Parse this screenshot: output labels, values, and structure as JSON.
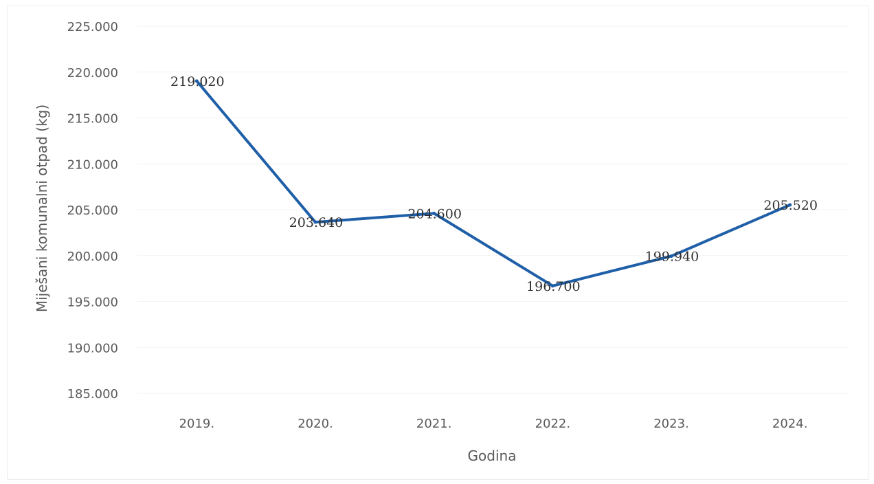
{
  "chart_data": {
    "type": "line",
    "title": "",
    "xlabel": "Godina",
    "ylabel": "Miješani komunalni otpad (kg)",
    "categories": [
      "2019.",
      "2020.",
      "2021.",
      "2022.",
      "2023.",
      "2024."
    ],
    "series": [
      {
        "values": [
          219020,
          203640,
          204600,
          196700,
          199940,
          205520
        ],
        "color": "#1f5fa8"
      }
    ],
    "data_labels": [
      "219.020",
      "203.640",
      "204.600",
      "196.700",
      "199.940",
      "205.520"
    ],
    "ylim": [
      185000,
      225000
    ],
    "yticks": [
      185000,
      190000,
      195000,
      200000,
      205000,
      210000,
      215000,
      220000,
      225000
    ],
    "ytick_labels": [
      "185.000",
      "190.000",
      "195.000",
      "200.000",
      "205.000",
      "210.000",
      "215.000",
      "220.000",
      "225.000"
    ],
    "grid": true,
    "legend": "none"
  }
}
